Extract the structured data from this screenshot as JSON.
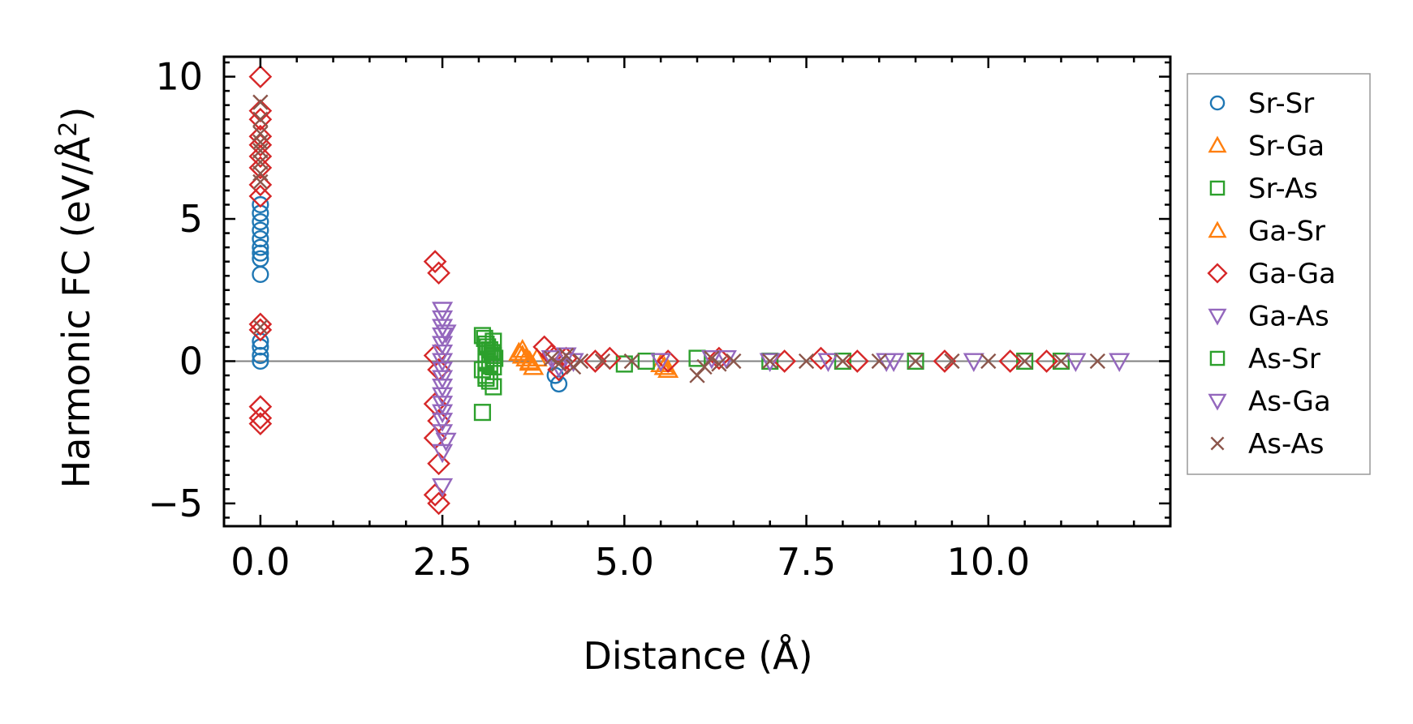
{
  "chart_data": {
    "type": "scatter",
    "xlabel": "Distance (Å)",
    "ylabel": "Harmonic FC (eV/Å",
    "ylabel_sup": "2",
    "ylabel_close": ")",
    "xlim": [
      -0.5,
      12.5
    ],
    "ylim": [
      -5.8,
      10.7
    ],
    "xticks": [
      0.0,
      2.5,
      5.0,
      7.5,
      10.0
    ],
    "xtick_labels": [
      "0.0",
      "2.5",
      "5.0",
      "7.5",
      "10.0"
    ],
    "yticks": [
      -5,
      0,
      5,
      10
    ],
    "ytick_labels": [
      "−5",
      "0",
      "5",
      "10"
    ],
    "zero_line": 0,
    "legend_position": "outside-right",
    "series": [
      {
        "name": "Sr-Sr",
        "marker": "circle",
        "color": "#1f77b4",
        "x": [
          0,
          0,
          0,
          0,
          0,
          0,
          0,
          0,
          0,
          0,
          0,
          0,
          0,
          4.05,
          4.1
        ],
        "y": [
          5.5,
          5.2,
          4.9,
          4.6,
          4.3,
          4.0,
          3.8,
          3.6,
          3.05,
          0.7,
          0.5,
          0.2,
          0.0,
          -0.5,
          -0.8
        ]
      },
      {
        "name": "Sr-Ga",
        "marker": "triangle-up",
        "color": "#ff7f0e",
        "x": [
          3.55,
          3.6,
          3.65,
          3.7,
          3.75,
          3.8,
          5.5,
          5.55,
          5.6
        ],
        "y": [
          0.3,
          0.2,
          0.1,
          -0.05,
          -0.2,
          0.1,
          -0.1,
          -0.2,
          -0.3
        ]
      },
      {
        "name": "Sr-As",
        "marker": "square",
        "color": "#2ca02c",
        "x": [
          3.05,
          3.08,
          3.1,
          3.12,
          3.15,
          3.18,
          3.2,
          3.22,
          3.1,
          3.15,
          3.2,
          3.05,
          3.1,
          3.15,
          3.2,
          3.05,
          5.0,
          5.3,
          6.0,
          7.0,
          8.0,
          9.0,
          10.5,
          11.0
        ],
        "y": [
          0.9,
          0.8,
          0.6,
          0.5,
          0.4,
          0.3,
          0.2,
          0.1,
          0.0,
          -0.1,
          -0.2,
          -0.3,
          -0.5,
          -0.7,
          -0.9,
          -1.8,
          -0.1,
          0.0,
          0.1,
          0.0,
          0.0,
          0.0,
          0.0,
          0.0
        ]
      },
      {
        "name": "Ga-Sr",
        "marker": "triangle-up",
        "color": "#ff7f0e",
        "x": [
          3.6,
          3.7
        ],
        "y": [
          0.4,
          0.0
        ]
      },
      {
        "name": "Ga-Ga",
        "marker": "diamond",
        "color": "#d62728",
        "x": [
          0,
          0,
          0,
          0,
          0,
          0,
          0,
          0,
          0,
          0,
          0,
          0,
          0,
          0,
          2.4,
          2.45,
          2.4,
          2.45,
          2.4,
          2.45,
          2.4,
          2.45,
          2.4,
          2.45,
          3.9,
          4.0,
          4.1,
          4.2,
          4.6,
          4.8,
          5.6,
          6.3,
          7.2,
          7.7,
          8.2,
          9.4,
          10.3,
          10.8
        ],
        "y": [
          10.0,
          8.8,
          8.5,
          7.9,
          7.6,
          7.2,
          6.8,
          6.2,
          5.8,
          1.3,
          1.1,
          -1.6,
          -2.0,
          -2.2,
          3.5,
          3.1,
          0.2,
          -0.3,
          -1.5,
          -2.1,
          -2.7,
          -3.6,
          -4.7,
          -5.0,
          0.5,
          0.2,
          -0.3,
          0.1,
          0.0,
          0.1,
          0.0,
          0.1,
          0.0,
          0.1,
          0.0,
          0.0,
          0.0,
          0.0
        ]
      },
      {
        "name": "Ga-As",
        "marker": "triangle-down",
        "color": "#9467bd",
        "x": [
          2.5,
          2.5,
          2.5,
          2.5,
          2.5,
          2.5,
          2.5,
          2.5,
          2.5,
          2.5,
          2.5,
          2.5,
          2.5,
          2.5,
          2.5,
          2.5,
          2.5,
          4.0,
          4.2,
          4.3,
          5.5,
          6.2,
          7.0,
          7.8,
          8.7,
          9.8,
          11.8
        ],
        "y": [
          1.8,
          1.5,
          1.2,
          0.9,
          0.6,
          0.3,
          0.0,
          -0.3,
          -0.6,
          -0.9,
          -1.2,
          -1.5,
          -1.8,
          -2.1,
          -2.5,
          -3.2,
          -4.4,
          0.1,
          0.2,
          0.0,
          0.0,
          0.1,
          0.0,
          0.0,
          0.0,
          0.0,
          0.0
        ]
      },
      {
        "name": "As-Sr",
        "marker": "square",
        "color": "#2ca02c",
        "x": [
          3.1,
          3.2
        ],
        "y": [
          -0.6,
          0.7
        ]
      },
      {
        "name": "As-Ga",
        "marker": "triangle-down",
        "color": "#9467bd",
        "x": [
          2.55,
          2.55,
          4.1,
          6.4,
          8.6,
          11.2
        ],
        "y": [
          1.0,
          -2.8,
          -0.2,
          0.1,
          0.0,
          0.0
        ]
      },
      {
        "name": "As-As",
        "marker": "x",
        "color": "#8c564b",
        "x": [
          0,
          0,
          0,
          0,
          0,
          0,
          0,
          0,
          0,
          4.0,
          4.1,
          4.2,
          4.3,
          4.4,
          4.7,
          5.1,
          6.0,
          6.1,
          6.2,
          6.3,
          6.5,
          7.0,
          7.5,
          8.0,
          8.5,
          9.0,
          9.5,
          10.0,
          10.5,
          11.0,
          11.5
        ],
        "y": [
          9.1,
          8.5,
          8.0,
          7.7,
          7.4,
          7.0,
          6.6,
          6.3,
          1.2,
          0.1,
          -0.1,
          0.2,
          -0.2,
          0.0,
          0.0,
          0.0,
          -0.5,
          -0.2,
          0.1,
          -0.1,
          0.0,
          0.0,
          0.0,
          0.0,
          0.0,
          0.0,
          0.0,
          0.0,
          0.0,
          0.0,
          0.0
        ]
      }
    ]
  }
}
